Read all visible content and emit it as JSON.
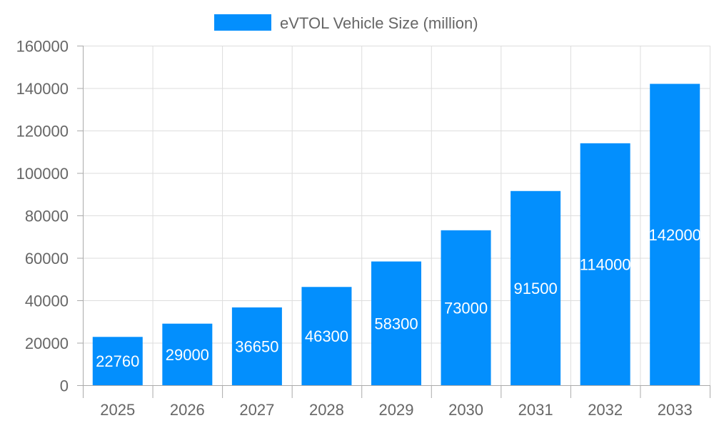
{
  "chart_data": {
    "type": "bar",
    "title": "",
    "xlabel": "",
    "ylabel": "",
    "categories": [
      "2025",
      "2026",
      "2027",
      "2028",
      "2029",
      "2030",
      "2031",
      "2032",
      "2033"
    ],
    "series": [
      {
        "name": "eVTOL Vehicle Size (million)",
        "values": [
          22760,
          29000,
          36650,
          46300,
          58300,
          73000,
          91500,
          114000,
          142000
        ],
        "color": "#038ffd"
      }
    ],
    "ylim": [
      0,
      160000
    ],
    "yticks": [
      0,
      20000,
      40000,
      60000,
      80000,
      100000,
      120000,
      140000,
      160000
    ],
    "grid": true,
    "legend": "top",
    "data_labels": true
  }
}
